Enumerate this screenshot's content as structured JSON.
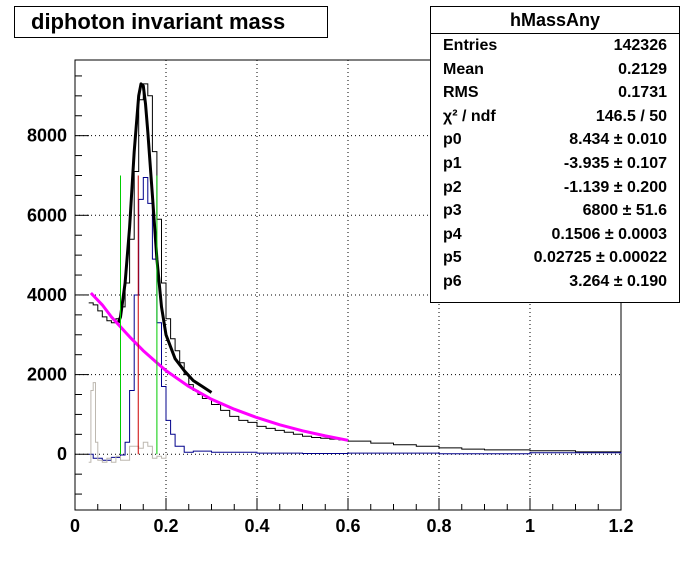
{
  "chart_data": {
    "type": "line",
    "title": "diphoton invariant mass",
    "xlim": [
      0,
      1.2
    ],
    "ylim": [
      -1400,
      9900
    ],
    "grid": true,
    "x_ticks": [
      "0",
      "0.2",
      "0.4",
      "0.6",
      "0.8",
      "1",
      "1.2"
    ],
    "y_ticks": [
      "0",
      "2000",
      "4000",
      "6000",
      "8000"
    ],
    "stats": {
      "name": "hMassAny",
      "rows": [
        {
          "label": "Entries",
          "value": "142326"
        },
        {
          "label": "Mean",
          "value": "0.2129"
        },
        {
          "label": "RMS",
          "value": "0.1731"
        },
        {
          "label": "χ² / ndf",
          "value": "146.5 / 50"
        },
        {
          "label": "p0",
          "value": "8.434 ± 0.010"
        },
        {
          "label": "p1",
          "value": "-3.935 ± 0.107"
        },
        {
          "label": "p2",
          "value": "-1.139 ± 0.200"
        },
        {
          "label": "p3",
          "value": "6800 ± 51.6"
        },
        {
          "label": "p4",
          "value": "0.1506 ± 0.0003"
        },
        {
          "label": "p5",
          "value": "0.02725 ± 0.00022"
        },
        {
          "label": "p6",
          "value": "3.264 ± 0.190"
        }
      ]
    },
    "colors": {
      "total": "#000000",
      "signal": "#00008b",
      "fit": "#000000",
      "background_fit": "#ff00ff",
      "background_residual": "#bdb8b0",
      "left_marker": "#00cc00",
      "center_marker": "#cc0000",
      "right_marker": "#00cc00"
    },
    "series": [
      {
        "kind": "histogram",
        "color_key": "total",
        "x": [
          0.03,
          0.04,
          0.05,
          0.06,
          0.07,
          0.08,
          0.09,
          0.1,
          0.11,
          0.12,
          0.13,
          0.14,
          0.15,
          0.16,
          0.17,
          0.18,
          0.19,
          0.2,
          0.21,
          0.22,
          0.23,
          0.24,
          0.25,
          0.26,
          0.27,
          0.28,
          0.3,
          0.32,
          0.34,
          0.36,
          0.38,
          0.4,
          0.42,
          0.44,
          0.46,
          0.48,
          0.5,
          0.52,
          0.54,
          0.56,
          0.58,
          0.6,
          0.65,
          0.7,
          0.75,
          0.8,
          0.85,
          0.9,
          1.0,
          1.1,
          1.2
        ],
        "values": [
          3800,
          3750,
          3600,
          3450,
          3350,
          3300,
          3400,
          3700,
          4300,
          5400,
          7100,
          8900,
          9300,
          9000,
          7600,
          5900,
          4300,
          3400,
          2900,
          2600,
          2300,
          2000,
          1750,
          1600,
          1500,
          1400,
          1250,
          1100,
          950,
          850,
          800,
          700,
          650,
          600,
          550,
          500,
          450,
          420,
          400,
          380,
          360,
          330,
          280,
          240,
          200,
          160,
          130,
          110,
          90,
          60,
          40
        ]
      },
      {
        "kind": "histogram",
        "color_key": "signal",
        "x": [
          0.03,
          0.04,
          0.06,
          0.08,
          0.1,
          0.11,
          0.12,
          0.13,
          0.14,
          0.15,
          0.16,
          0.17,
          0.18,
          0.19,
          0.2,
          0.21,
          0.22,
          0.24,
          0.26,
          0.3,
          0.4,
          0.5,
          0.6,
          0.8,
          1.0,
          1.2
        ],
        "values": [
          0,
          -100,
          -150,
          -80,
          -20,
          300,
          1600,
          4000,
          6400,
          6950,
          6300,
          4900,
          3300,
          1700,
          850,
          500,
          200,
          50,
          80,
          50,
          30,
          20,
          30,
          10,
          40,
          20
        ]
      },
      {
        "kind": "histogram",
        "color_key": "background_residual",
        "x": [
          0.03,
          0.035,
          0.04,
          0.045,
          0.05,
          0.06,
          0.07,
          0.08,
          0.09,
          0.1,
          0.12,
          0.14,
          0.15,
          0.16,
          0.17,
          0.18,
          0.19,
          0.2
        ],
        "values": [
          -200,
          1600,
          1800,
          300,
          -150,
          -200,
          -100,
          -200,
          -50,
          -150,
          200,
          150,
          300,
          200,
          -100,
          -50,
          -100,
          0
        ]
      },
      {
        "kind": "curve",
        "color_key": "fit",
        "x": [
          0.095,
          0.1,
          0.11,
          0.12,
          0.13,
          0.14,
          0.145,
          0.15,
          0.155,
          0.16,
          0.17,
          0.18,
          0.19,
          0.2,
          0.22,
          0.24,
          0.26,
          0.28,
          0.3
        ],
        "values": [
          3300,
          3450,
          4300,
          5700,
          7600,
          9000,
          9300,
          9250,
          8800,
          8100,
          6500,
          4900,
          3700,
          3000,
          2400,
          2100,
          1850,
          1700,
          1550
        ]
      },
      {
        "kind": "curve",
        "color_key": "background_fit",
        "x": [
          0.035,
          0.06,
          0.08,
          0.1,
          0.12,
          0.15,
          0.18,
          0.2,
          0.25,
          0.3,
          0.35,
          0.4,
          0.45,
          0.5,
          0.55,
          0.6
        ],
        "values": [
          4050,
          3750,
          3450,
          3200,
          2950,
          2600,
          2300,
          2100,
          1700,
          1380,
          1130,
          920,
          740,
          590,
          460,
          350
        ]
      }
    ],
    "markers": [
      {
        "color_key": "left_marker",
        "x": 0.1,
        "y_top": 7000
      },
      {
        "color_key": "center_marker",
        "x": 0.139,
        "y_top": 7000
      },
      {
        "color_key": "right_marker",
        "x": 0.18,
        "y_top": 7000
      }
    ]
  }
}
